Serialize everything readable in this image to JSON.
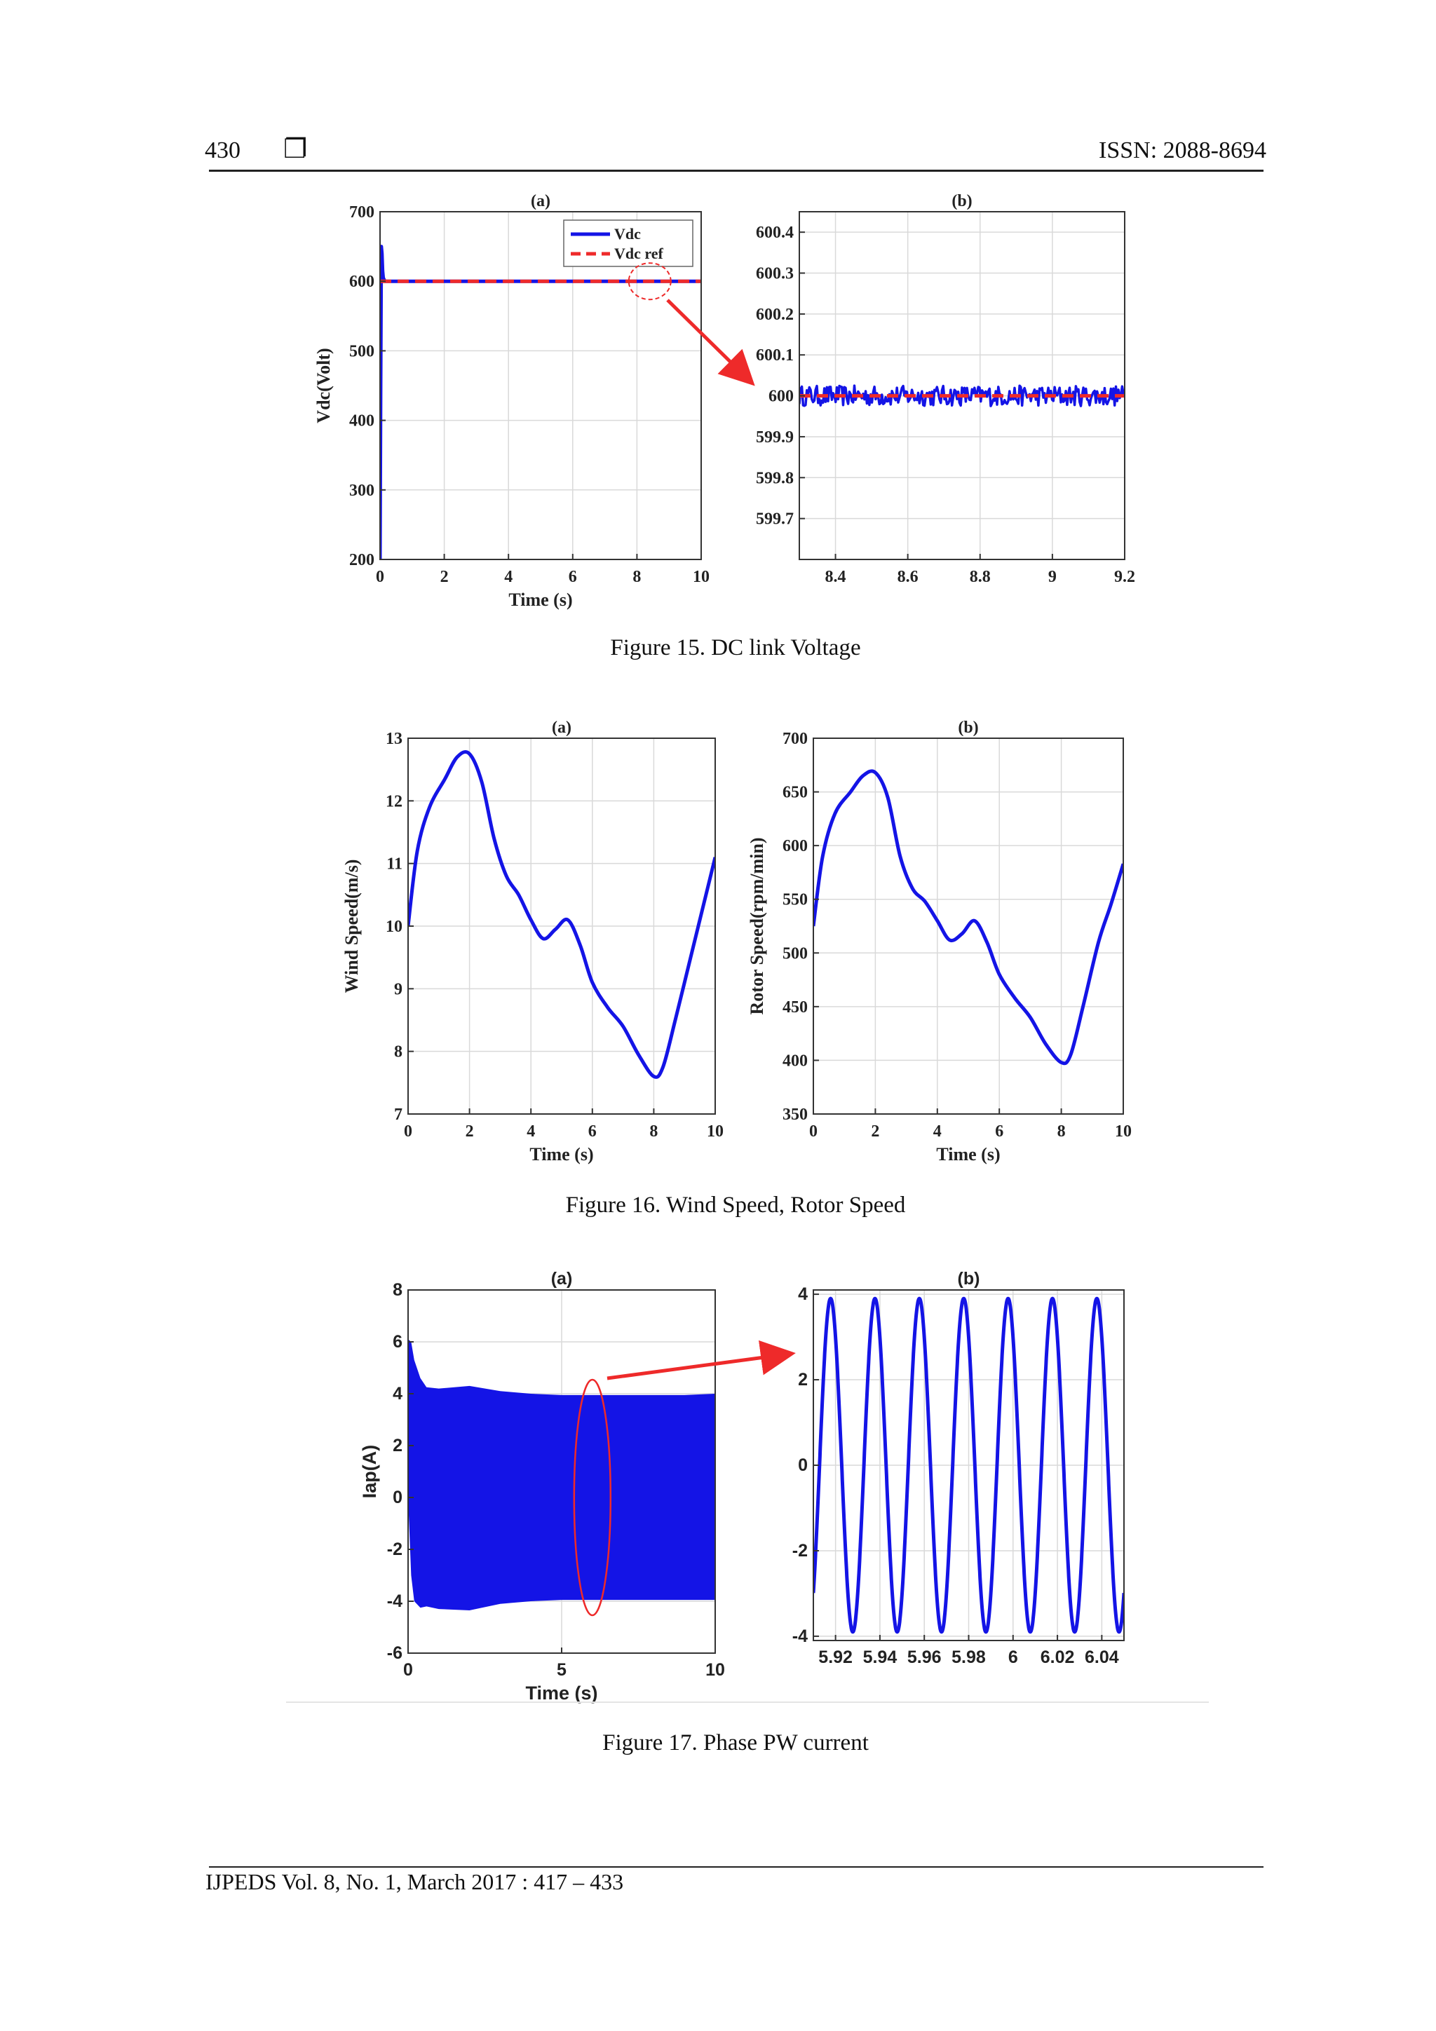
{
  "header": {
    "page_number": "430",
    "box_symbol": "❐",
    "issn": "ISSN: 2088-8694"
  },
  "footer": {
    "text": "IJPEDS  Vol. 8, No. 1, March 2017 :  417 – 433"
  },
  "figures": [
    {
      "caption": "Figure 15. DC link Voltage"
    },
    {
      "caption": "Figure 16. Wind Speed, Rotor Speed"
    },
    {
      "caption": "Figure 17. Phase PW current"
    }
  ],
  "colors": {
    "series_blue": "#1414e6",
    "reference_red": "#ee2a2a",
    "grid": "#d9d9d9"
  },
  "chart_data": [
    {
      "id": "f15a",
      "type": "line",
      "title": "(a)",
      "xlabel": "Time (s)",
      "ylabel": "Vdc(Volt)",
      "xlim": [
        0,
        10
      ],
      "ylim": [
        200,
        700
      ],
      "xticks": [
        0,
        2,
        4,
        6,
        8,
        10
      ],
      "xtick_labels": [
        "0",
        "2",
        "4",
        "6",
        "8",
        "10"
      ],
      "yticks": [
        200,
        300,
        400,
        500,
        600,
        700
      ],
      "ytick_labels": [
        "200",
        "300",
        "400",
        "500",
        "600",
        "700"
      ],
      "legend": {
        "position": "top-right",
        "entries": [
          "Vdc",
          "Vdc ref"
        ]
      },
      "grid": true,
      "series": [
        {
          "name": "Vdc",
          "color": "#1414e6",
          "style": "solid",
          "x": [
            0,
            0.02,
            0.04,
            0.06,
            0.08,
            0.1,
            0.15,
            0.2,
            1,
            2,
            4,
            6,
            8,
            10
          ],
          "y": [
            200,
            450,
            650,
            640,
            615,
            605,
            600,
            600,
            600,
            600,
            600,
            600,
            600,
            600
          ]
        },
        {
          "name": "Vdc ref",
          "color": "#ee2a2a",
          "style": "dashed",
          "x": [
            0,
            10
          ],
          "y": [
            600,
            600
          ]
        }
      ],
      "annotation": {
        "type": "ellipse",
        "x": 8.4,
        "y": 600
      }
    },
    {
      "id": "f15b",
      "type": "line",
      "title": "(b)",
      "xlim": [
        8.3,
        9.2
      ],
      "ylim": [
        599.6,
        600.45
      ],
      "xticks": [
        8.4,
        8.6,
        8.8,
        9,
        9.2
      ],
      "xtick_labels": [
        "8.4",
        "8.6",
        "8.8",
        "9",
        "9.2"
      ],
      "yticks": [
        599.7,
        599.8,
        599.9,
        600,
        600.1,
        600.2,
        600.3,
        600.4
      ],
      "ytick_labels": [
        "599.7",
        "599.8",
        "599.9",
        "600",
        "600.1",
        "600.2",
        "600.3",
        "600.4"
      ],
      "grid": true,
      "series": [
        {
          "name": "Vdc",
          "color": "#1414e6",
          "style": "noise",
          "mean": 600,
          "amplitude": 0.025,
          "x": [
            8.3,
            9.2
          ]
        },
        {
          "name": "Vdc ref",
          "color": "#ee2a2a",
          "style": "dashed",
          "x": [
            8.3,
            9.2
          ],
          "y": [
            600,
            600
          ]
        }
      ]
    },
    {
      "id": "f16a",
      "type": "line",
      "title": "(a)",
      "xlabel": "Time (s)",
      "ylabel": "Wind Speed(m/s)",
      "xlim": [
        0,
        10
      ],
      "ylim": [
        7,
        13
      ],
      "xticks": [
        0,
        2,
        4,
        6,
        8,
        10
      ],
      "xtick_labels": [
        "0",
        "2",
        "4",
        "6",
        "8",
        "10"
      ],
      "yticks": [
        7,
        8,
        9,
        10,
        11,
        12,
        13
      ],
      "ytick_labels": [
        "7",
        "8",
        "9",
        "10",
        "11",
        "12",
        "13"
      ],
      "grid": true,
      "series": [
        {
          "name": "",
          "color": "#1414e6",
          "style": "solid",
          "x": [
            0,
            0.3,
            0.7,
            1.2,
            1.6,
            2.0,
            2.4,
            2.8,
            3.2,
            3.6,
            4.0,
            4.4,
            4.8,
            5.2,
            5.6,
            6.0,
            6.5,
            7.0,
            7.5,
            8.0,
            8.3,
            8.7,
            9.2,
            9.6,
            10
          ],
          "y": [
            10.0,
            11.2,
            11.9,
            12.35,
            12.7,
            12.75,
            12.3,
            11.4,
            10.8,
            10.5,
            10.1,
            9.8,
            9.95,
            10.1,
            9.7,
            9.1,
            8.7,
            8.4,
            7.95,
            7.6,
            7.75,
            8.5,
            9.5,
            10.3,
            11.1
          ]
        }
      ]
    },
    {
      "id": "f16b",
      "type": "line",
      "title": "(b)",
      "xlabel": "Time (s)",
      "ylabel": "Rotor Speed(rpm/min)",
      "xlim": [
        0,
        10
      ],
      "ylim": [
        350,
        700
      ],
      "xticks": [
        0,
        2,
        4,
        6,
        8,
        10
      ],
      "xtick_labels": [
        "0",
        "2",
        "4",
        "6",
        "8",
        "10"
      ],
      "yticks": [
        350,
        400,
        450,
        500,
        550,
        600,
        650,
        700
      ],
      "ytick_labels": [
        "350",
        "400",
        "450",
        "500",
        "550",
        "600",
        "650",
        "700"
      ],
      "grid": true,
      "series": [
        {
          "name": "",
          "color": "#1414e6",
          "style": "solid",
          "x": [
            0,
            0.3,
            0.7,
            1.2,
            1.6,
            2.0,
            2.4,
            2.8,
            3.2,
            3.6,
            4.0,
            4.4,
            4.8,
            5.2,
            5.6,
            6.0,
            6.5,
            7.0,
            7.5,
            8.0,
            8.3,
            8.7,
            9.2,
            9.6,
            10
          ],
          "y": [
            525,
            590,
            630,
            650,
            665,
            668,
            645,
            590,
            560,
            548,
            530,
            512,
            518,
            530,
            510,
            480,
            458,
            440,
            415,
            398,
            405,
            450,
            510,
            545,
            583
          ]
        }
      ]
    },
    {
      "id": "f17a",
      "type": "area",
      "title": "(a)",
      "xlabel": "Time (s)",
      "ylabel": "Iap(A)",
      "xlim": [
        0,
        10
      ],
      "ylim": [
        -6,
        8
      ],
      "xticks": [
        0,
        5,
        10
      ],
      "xtick_labels": [
        "0",
        "5",
        "10"
      ],
      "yticks": [
        -6,
        -4,
        -2,
        0,
        2,
        4,
        6,
        8
      ],
      "ytick_labels": [
        "-6",
        "-4",
        "-2",
        "0",
        "2",
        "4",
        "6",
        "8"
      ],
      "grid": true,
      "envelope": {
        "x": [
          0,
          0.1,
          0.2,
          0.4,
          0.6,
          1,
          2,
          3,
          4,
          5,
          6,
          7,
          8,
          9,
          10
        ],
        "upper": [
          6.1,
          6.0,
          5.3,
          4.6,
          4.25,
          4.2,
          4.3,
          4.1,
          4.0,
          3.95,
          3.95,
          3.95,
          3.95,
          3.95,
          4.0
        ],
        "lower": [
          0.0,
          -3.0,
          -4.0,
          -4.25,
          -4.2,
          -4.3,
          -4.35,
          -4.1,
          -4.0,
          -3.95,
          -3.95,
          -3.95,
          -3.95,
          -3.95,
          -3.95
        ]
      },
      "series": [
        {
          "name": "",
          "color": "#1414e6"
        }
      ],
      "annotation": {
        "type": "ellipse",
        "x": 6,
        "y": 0
      }
    },
    {
      "id": "f17b",
      "type": "line",
      "title": "(b)",
      "xlim": [
        5.91,
        6.05
      ],
      "ylim": [
        -4.1,
        4.1
      ],
      "xticks": [
        5.92,
        5.94,
        5.96,
        5.98,
        6,
        6.02,
        6.04
      ],
      "xtick_labels": [
        "5.92",
        "5.94",
        "5.96",
        "5.98",
        "6",
        "6.02",
        "6.04"
      ],
      "yticks": [
        -4,
        -2,
        0,
        2,
        4
      ],
      "ytick_labels": [
        "-4",
        "-2",
        "0",
        "2",
        "4"
      ],
      "grid": true,
      "series": [
        {
          "name": "",
          "color": "#1414e6",
          "style": "sine",
          "amplitude": 3.9,
          "frequency_hz": 50,
          "phase_deg": -50
        }
      ]
    }
  ]
}
